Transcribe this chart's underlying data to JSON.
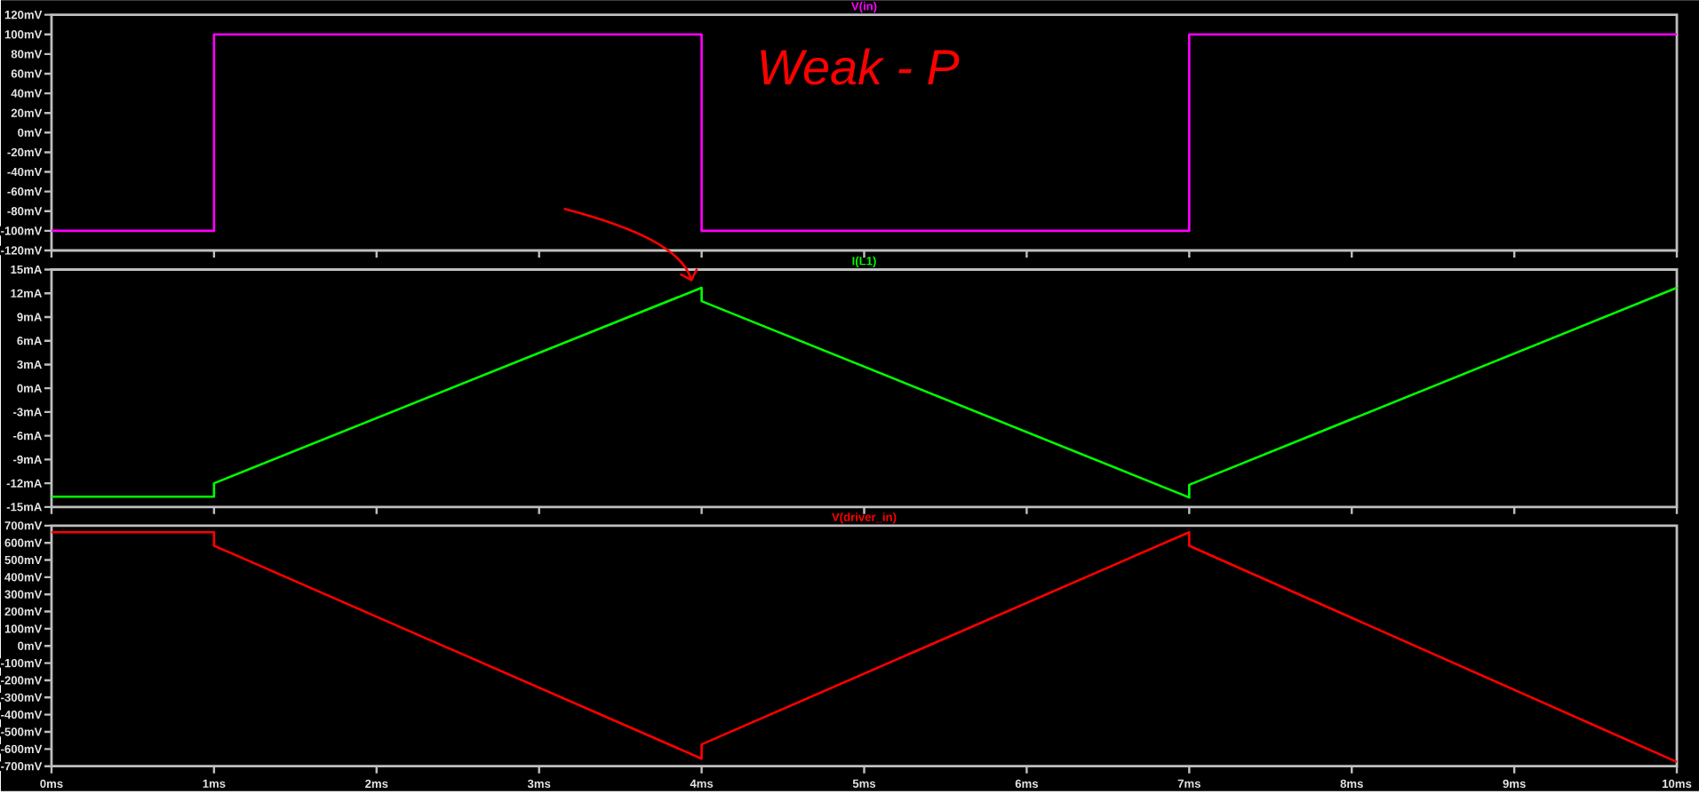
{
  "chart_data": [
    {
      "type": "line",
      "title": "V(in)",
      "xlim": [
        0,
        10
      ],
      "tick_labels": "y",
      "xticks": [
        {
          "value": 0,
          "label": null
        },
        {
          "value": 1,
          "label": null
        },
        {
          "value": 2,
          "label": null
        },
        {
          "value": 3,
          "label": null
        },
        {
          "value": 4,
          "label": null
        },
        {
          "value": 5,
          "label": null
        },
        {
          "value": 6,
          "label": null
        },
        {
          "value": 7,
          "label": null
        },
        {
          "value": 8,
          "label": null
        },
        {
          "value": 9,
          "label": null
        },
        {
          "value": 10,
          "label": null
        }
      ],
      "ylim": [
        -120,
        120
      ],
      "yticks": [
        {
          "value": -120,
          "label": "-120mV"
        },
        {
          "value": -100,
          "label": "-100mV"
        },
        {
          "value": -80,
          "label": "-80mV"
        },
        {
          "value": -60,
          "label": "-60mV"
        },
        {
          "value": -40,
          "label": "-40mV"
        },
        {
          "value": -20,
          "label": "-20mV"
        },
        {
          "value": 0,
          "label": "0mV"
        },
        {
          "value": 20,
          "label": "20mV"
        },
        {
          "value": 40,
          "label": "40mV"
        },
        {
          "value": 60,
          "label": "60mV"
        },
        {
          "value": 80,
          "label": "80mV"
        },
        {
          "value": 100,
          "label": "100mV"
        },
        {
          "value": 120,
          "label": "120mV"
        }
      ],
      "annotations": [
        "Weak - P"
      ],
      "series": [
        {
          "color": "#ff00ff",
          "x": [
            0,
            1,
            1,
            4,
            4,
            7,
            7,
            10
          ],
          "values": [
            -100,
            -100,
            100,
            100,
            -100,
            -100,
            100,
            100
          ]
        }
      ]
    },
    {
      "type": "line",
      "title": "I(L1)",
      "xlim": [
        0,
        10
      ],
      "tick_labels": "y",
      "xticks": [
        {
          "value": 0,
          "label": null
        },
        {
          "value": 1,
          "label": null
        },
        {
          "value": 2,
          "label": null
        },
        {
          "value": 3,
          "label": null
        },
        {
          "value": 4,
          "label": null
        },
        {
          "value": 5,
          "label": null
        },
        {
          "value": 6,
          "label": null
        },
        {
          "value": 7,
          "label": null
        },
        {
          "value": 8,
          "label": null
        },
        {
          "value": 9,
          "label": null
        },
        {
          "value": 10,
          "label": null
        }
      ],
      "ylim": [
        -15,
        15
      ],
      "yticks": [
        {
          "value": -15,
          "label": "-15mA"
        },
        {
          "value": -12,
          "label": "-12mA"
        },
        {
          "value": -9,
          "label": "-9mA"
        },
        {
          "value": -6,
          "label": "-6mA"
        },
        {
          "value": -3,
          "label": "-3mA"
        },
        {
          "value": 0,
          "label": "0mA"
        },
        {
          "value": 3,
          "label": "3mA"
        },
        {
          "value": 6,
          "label": "6mA"
        },
        {
          "value": 9,
          "label": "9mA"
        },
        {
          "value": 12,
          "label": "12mA"
        },
        {
          "value": 15,
          "label": "15mA"
        }
      ],
      "series": [
        {
          "color": "#00ff00",
          "x": [
            0,
            1,
            1,
            4,
            4,
            7,
            7,
            10
          ],
          "values": [
            -13.7,
            -13.7,
            -12,
            12.7,
            11,
            -13.8,
            -12.2,
            12.7
          ]
        }
      ]
    },
    {
      "type": "line",
      "title": "V(driver_in)",
      "xlim": [
        0,
        10
      ],
      "xticks": [
        {
          "value": 0,
          "label": "0ms"
        },
        {
          "value": 1,
          "label": "1ms"
        },
        {
          "value": 2,
          "label": "2ms"
        },
        {
          "value": 3,
          "label": "3ms"
        },
        {
          "value": 4,
          "label": "4ms"
        },
        {
          "value": 5,
          "label": "5ms"
        },
        {
          "value": 6,
          "label": "6ms"
        },
        {
          "value": 7,
          "label": "7ms"
        },
        {
          "value": 8,
          "label": "8ms"
        },
        {
          "value": 9,
          "label": "9ms"
        },
        {
          "value": 10,
          "label": "10ms"
        }
      ],
      "ylim": [
        -700,
        700
      ],
      "yticks": [
        {
          "value": -700,
          "label": "-700mV"
        },
        {
          "value": -600,
          "label": "-600mV"
        },
        {
          "value": -500,
          "label": "-500mV"
        },
        {
          "value": -400,
          "label": "-400mV"
        },
        {
          "value": -300,
          "label": "-300mV"
        },
        {
          "value": -200,
          "label": "-200mV"
        },
        {
          "value": -100,
          "label": "-100mV"
        },
        {
          "value": 0,
          "label": "0mV"
        },
        {
          "value": 100,
          "label": "100mV"
        },
        {
          "value": 200,
          "label": "200mV"
        },
        {
          "value": 300,
          "label": "300mV"
        },
        {
          "value": 400,
          "label": "400mV"
        },
        {
          "value": 500,
          "label": "500mV"
        },
        {
          "value": 600,
          "label": "600mV"
        },
        {
          "value": 700,
          "label": "700mV"
        }
      ],
      "series": [
        {
          "color": "#ff0000",
          "x": [
            0,
            1,
            1,
            4,
            4,
            7,
            7,
            10
          ],
          "values": [
            662,
            662,
            583,
            -656,
            -573,
            662,
            583,
            -675
          ]
        }
      ]
    }
  ]
}
